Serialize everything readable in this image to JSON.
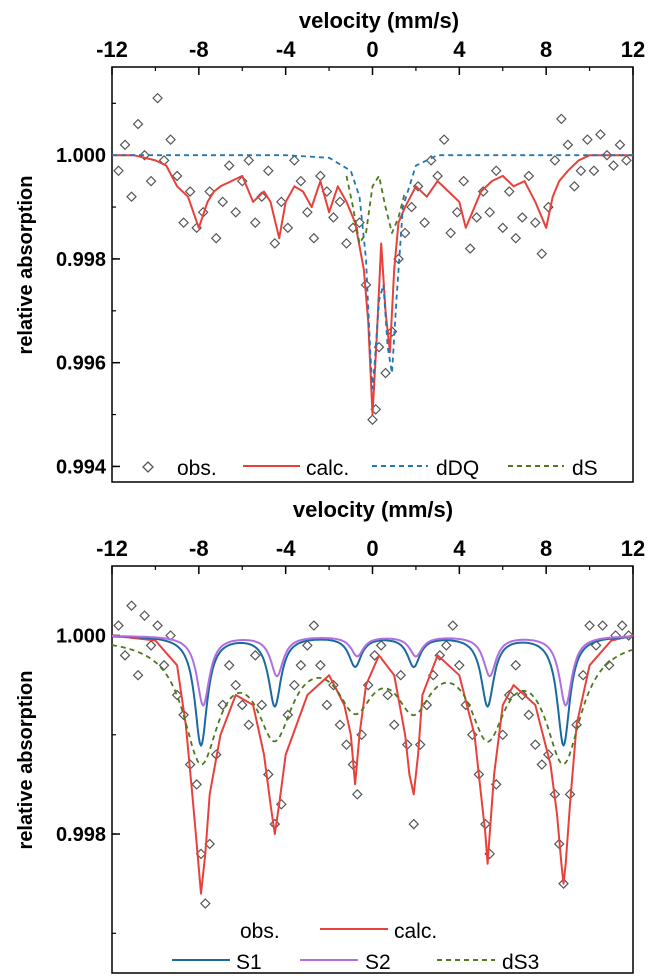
{
  "chart_data": [
    {
      "type": "line",
      "xlabel": "velocity (mm/s)",
      "ylabel": "relative absorption",
      "xlim": [
        -12,
        12
      ],
      "ylim": [
        0.9937,
        1.0017
      ],
      "xticks": [
        -12,
        -8,
        -4,
        0,
        4,
        8,
        12
      ],
      "xtick_labels": [
        "-12",
        "-8",
        "-4",
        "0",
        "4",
        "8",
        "12"
      ],
      "yticks": [
        0.994,
        0.996,
        0.998,
        1.0
      ],
      "ytick_labels": [
        "0.994",
        "0.996",
        "0.998",
        "1.000"
      ],
      "legend": [
        "obs.",
        "calc.",
        "dDQ",
        "dS"
      ],
      "legend_position": "bottom",
      "series": [
        {
          "name": "obs.",
          "style": "scatter-diamond",
          "color": "#555555",
          "x": [
            -11.7,
            -11.4,
            -11.1,
            -10.8,
            -10.5,
            -10.2,
            -9.9,
            -9.6,
            -9.3,
            -9.0,
            -8.7,
            -8.4,
            -8.1,
            -7.8,
            -7.5,
            -7.2,
            -6.9,
            -6.6,
            -6.3,
            -6.0,
            -5.7,
            -5.4,
            -5.1,
            -4.8,
            -4.5,
            -4.2,
            -3.9,
            -3.6,
            -3.3,
            -3.0,
            -2.7,
            -2.4,
            -2.1,
            -1.8,
            -1.5,
            -1.2,
            -0.9,
            -0.6,
            -0.3,
            0.0,
            0.15,
            0.3,
            0.6,
            0.9,
            1.2,
            1.5,
            1.8,
            2.1,
            2.4,
            2.7,
            3.0,
            3.3,
            3.6,
            3.9,
            4.2,
            4.5,
            4.8,
            5.1,
            5.4,
            5.7,
            6.0,
            6.3,
            6.6,
            6.9,
            7.2,
            7.5,
            7.8,
            8.1,
            8.4,
            8.7,
            9.0,
            9.3,
            9.6,
            9.9,
            10.2,
            10.5,
            10.8,
            11.1,
            11.4,
            11.7
          ],
          "y": [
            0.9997,
            1.0002,
            0.9992,
            1.0006,
            1.0,
            0.9995,
            1.0011,
            0.9999,
            1.0003,
            0.9996,
            0.9987,
            0.9993,
            0.9986,
            0.9989,
            0.9993,
            0.9984,
            0.9991,
            0.9998,
            0.9989,
            0.9995,
            0.9999,
            0.9987,
            0.9992,
            0.9997,
            0.9983,
            0.9991,
            0.9986,
            0.9999,
            0.9995,
            0.9989,
            0.9984,
            0.9996,
            0.9993,
            0.9988,
            0.9991,
            0.9983,
            0.9986,
            0.9987,
            0.9975,
            0.9949,
            0.9951,
            0.9963,
            0.9958,
            0.9966,
            0.998,
            0.9985,
            0.999,
            0.9994,
            0.9987,
            0.9999,
            0.9996,
            1.0003,
            0.9985,
            0.9989,
            0.9995,
            0.9982,
            0.9988,
            0.9993,
            0.9989,
            0.9997,
            0.9986,
            0.9993,
            0.9984,
            0.9988,
            0.9996,
            0.9987,
            0.9981,
            0.999,
            0.9999,
            1.0007,
            1.0002,
            0.9994,
            0.9997,
            1.0003,
            0.9997,
            1.0004,
            1.0,
            0.9998,
            1.0002,
            0.9999
          ]
        },
        {
          "name": "calc.",
          "style": "solid",
          "color": "#e8413c",
          "x": [
            -12,
            -11,
            -10,
            -9.5,
            -9,
            -8.5,
            -8,
            -7.6,
            -7.3,
            -7,
            -6.5,
            -6,
            -5.5,
            -5,
            -4.7,
            -4.3,
            -4,
            -3.6,
            -3.2,
            -2.8,
            -2.4,
            -2,
            -1.6,
            -1.2,
            -0.8,
            -0.4,
            -0.2,
            0,
            0.2,
            0.4,
            0.6,
            0.8,
            1,
            1.2,
            1.5,
            2,
            2.5,
            3,
            3.5,
            4,
            4.3,
            4.7,
            5,
            5.5,
            6,
            6.5,
            7,
            7.5,
            8,
            8.3,
            8.6,
            9,
            9.5,
            10,
            11,
            12
          ],
          "y": [
            1.0,
            1.0,
            0.9999,
            0.9998,
            0.9994,
            0.9992,
            0.9986,
            0.9991,
            0.9993,
            0.9994,
            0.9995,
            0.9996,
            0.9991,
            0.9993,
            0.9991,
            0.9984,
            0.9991,
            0.9994,
            0.9993,
            0.999,
            0.9995,
            0.9989,
            0.9994,
            0.9991,
            0.9987,
            0.9978,
            0.9968,
            0.995,
            0.9965,
            0.9983,
            0.997,
            0.9962,
            0.9978,
            0.9987,
            0.999,
            0.9994,
            0.9992,
            0.9995,
            0.9993,
            0.9991,
            0.9986,
            0.999,
            0.9993,
            0.9995,
            0.9996,
            0.9994,
            0.9995,
            0.9991,
            0.9986,
            0.9992,
            0.9995,
            0.9997,
            0.9999,
            1.0,
            1.0,
            1.0
          ]
        },
        {
          "name": "dDQ",
          "style": "dashed",
          "color": "#1f77b4",
          "x": [
            -12,
            -4,
            -2,
            -1,
            -0.6,
            -0.3,
            -0.1,
            0,
            0.1,
            0.3,
            0.5,
            0.7,
            0.9,
            1.1,
            1.4,
            2,
            3,
            6,
            12
          ],
          "y": [
            1.0,
            1.0,
            0.99995,
            0.9997,
            0.9992,
            0.998,
            0.9962,
            0.9955,
            0.996,
            0.9972,
            0.9975,
            0.9963,
            0.9958,
            0.9972,
            0.999,
            0.9998,
            1.0,
            1.0,
            1.0
          ]
        },
        {
          "name": "dS",
          "style": "dashed",
          "color": "#4d7a1d",
          "x": [
            -1.2,
            -0.9,
            -0.6,
            -0.3,
            0,
            0.3,
            0.6,
            0.9,
            1.2,
            1.5
          ],
          "y": [
            0.9996,
            0.999,
            0.9983,
            0.9985,
            0.9994,
            0.9996,
            0.999,
            0.9985,
            0.9988,
            0.9993
          ]
        }
      ]
    },
    {
      "type": "line",
      "xlabel": "velocity (mm/s)",
      "ylabel": "relative absorption",
      "xlim": [
        -12,
        12
      ],
      "ylim": [
        0.9966,
        1.0007
      ],
      "xticks": [
        -12,
        -8,
        -4,
        0,
        4,
        8,
        12
      ],
      "xtick_labels": [
        "-12",
        "-8",
        "-4",
        "0",
        "4",
        "8",
        "12"
      ],
      "yticks": [
        0.998,
        1.0
      ],
      "ytick_labels": [
        "0.998",
        "1.000"
      ],
      "legend": [
        "obs.",
        "calc.",
        "S1",
        "S2",
        "dS3"
      ],
      "legend_position": "bottom",
      "line_positions": [
        -7.9,
        -4.5,
        -0.8,
        1.9,
        5.3,
        8.8
      ],
      "series": [
        {
          "name": "obs.",
          "style": "scatter-diamond",
          "color": "#555555",
          "x": [
            -11.7,
            -11.4,
            -11.1,
            -10.8,
            -10.5,
            -10.2,
            -9.9,
            -9.6,
            -9.3,
            -9.0,
            -8.7,
            -8.4,
            -8.1,
            -7.9,
            -7.7,
            -7.5,
            -7.2,
            -6.9,
            -6.6,
            -6.3,
            -6.0,
            -5.7,
            -5.4,
            -5.1,
            -4.8,
            -4.5,
            -4.2,
            -3.9,
            -3.6,
            -3.3,
            -3.0,
            -2.7,
            -2.4,
            -2.1,
            -1.8,
            -1.5,
            -1.2,
            -0.9,
            -0.7,
            -0.5,
            -0.2,
            0.1,
            0.4,
            0.7,
            1.0,
            1.3,
            1.6,
            1.9,
            2.2,
            2.5,
            2.8,
            3.1,
            3.4,
            3.7,
            4.0,
            4.3,
            4.6,
            4.9,
            5.2,
            5.4,
            5.7,
            6.0,
            6.3,
            6.6,
            6.9,
            7.2,
            7.5,
            7.8,
            8.1,
            8.4,
            8.6,
            8.8,
            9.1,
            9.4,
            9.7,
            10.0,
            10.3,
            10.6,
            10.9,
            11.2,
            11.5,
            11.8
          ],
          "y": [
            1.0001,
            0.9998,
            1.0003,
            0.9996,
            1.0002,
            0.9999,
            1.0001,
            0.9997,
            1.0,
            0.9994,
            0.9992,
            0.9987,
            0.9985,
            0.9978,
            0.9973,
            0.9979,
            0.9988,
            0.9993,
            0.9997,
            0.9995,
            0.9993,
            0.9991,
            0.9998,
            0.9993,
            0.9986,
            0.9981,
            0.9983,
            0.9992,
            0.9995,
            0.9997,
            0.9999,
            1.0001,
            0.9997,
            0.9993,
            0.9995,
            0.9991,
            0.9989,
            0.9987,
            0.9984,
            0.999,
            0.9995,
            0.9998,
            0.9999,
            0.9994,
            0.9991,
            0.9996,
            0.9989,
            0.9981,
            0.9989,
            0.9993,
            0.9996,
            0.9998,
            0.9999,
            1.0001,
            0.9997,
            0.9993,
            0.999,
            0.9986,
            0.9981,
            0.9978,
            0.9985,
            0.999,
            0.9994,
            0.9997,
            0.9994,
            0.9992,
            0.9989,
            0.9987,
            0.9988,
            0.9984,
            0.9979,
            0.9975,
            0.9984,
            0.9991,
            0.9996,
            1.0001,
            0.9999,
            1.0001,
            0.9997,
            1.0,
            1.0001,
            1.0
          ]
        },
        {
          "name": "calc.",
          "style": "solid",
          "color": "#e8413c",
          "x": [
            -12,
            -10,
            -9,
            -8.6,
            -8.3,
            -8.1,
            -7.9,
            -7.7,
            -7.5,
            -7.0,
            -6.3,
            -5.5,
            -5.0,
            -4.7,
            -4.5,
            -4.3,
            -4.0,
            -3.0,
            -2.0,
            -1.3,
            -1.0,
            -0.8,
            -0.6,
            -0.3,
            0.3,
            1.0,
            1.5,
            1.7,
            1.9,
            2.1,
            2.3,
            3.0,
            4.0,
            4.7,
            5.0,
            5.2,
            5.3,
            5.4,
            5.6,
            6.0,
            6.5,
            7.5,
            8.2,
            8.5,
            8.7,
            8.8,
            8.9,
            9.1,
            9.4,
            10,
            11,
            12
          ],
          "y": [
            1.0,
            0.99995,
            0.9997,
            0.9991,
            0.9984,
            0.9979,
            0.9974,
            0.9978,
            0.9984,
            0.999,
            0.9994,
            0.9993,
            0.9988,
            0.9983,
            0.998,
            0.9983,
            0.9988,
            0.9994,
            0.9996,
            0.9993,
            0.999,
            0.9985,
            0.999,
            0.9995,
            0.9998,
            0.9996,
            0.999,
            0.9986,
            0.9984,
            0.9988,
            0.9994,
            0.9998,
            0.9996,
            0.999,
            0.9984,
            0.998,
            0.9977,
            0.998,
            0.9986,
            0.9993,
            0.9995,
            0.9993,
            0.9987,
            0.9982,
            0.9977,
            0.9975,
            0.9977,
            0.9983,
            0.9991,
            0.9997,
            0.99995,
            1.0
          ]
        },
        {
          "name": "S1",
          "style": "solid",
          "color": "#1a6aa0",
          "depths": [
            0.0011,
            0.0007,
            0.0003,
            0.0003,
            0.0007,
            0.0011
          ],
          "width": 0.35
        },
        {
          "name": "S2",
          "style": "solid",
          "color": "#b06fe0",
          "depths": [
            0.0007,
            0.0004,
            0.0002,
            0.0002,
            0.0004,
            0.0007
          ],
          "width": 0.35,
          "shift": 0.1
        },
        {
          "name": "dS3",
          "style": "dashed",
          "color": "#4d7a1d",
          "depths": [
            0.0012,
            0.0009,
            0.0006,
            0.0006,
            0.0009,
            0.0012
          ],
          "width": 1.0
        }
      ]
    }
  ]
}
